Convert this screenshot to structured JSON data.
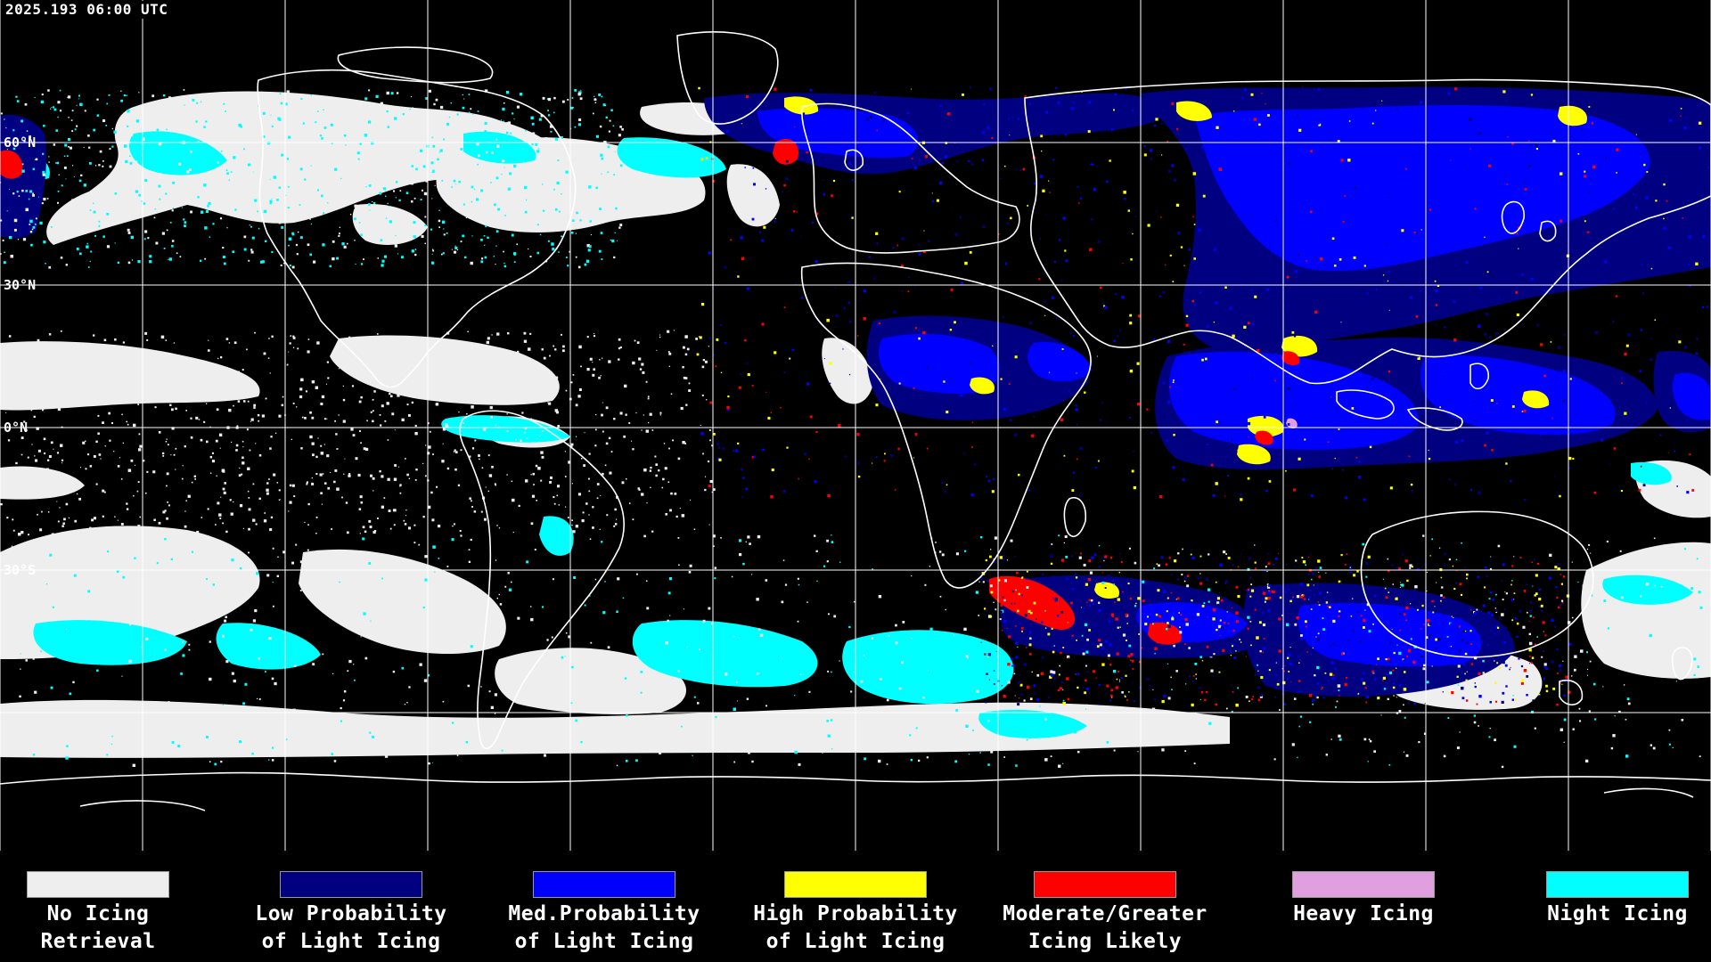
{
  "timestamp": "2025.193 06:00 UTC",
  "lat_labels": [
    {
      "text": "60°N",
      "row": 1
    },
    {
      "text": "30°N",
      "row": 2
    },
    {
      "text": "0°N",
      "row": 3
    },
    {
      "text": "30°S",
      "row": 4
    }
  ],
  "colors": {
    "background": "#000000",
    "no_icing": "#EEEEEE",
    "low_probability": "#000080",
    "med_probability": "#0000FF",
    "high_probability": "#FFFF00",
    "moderate_greater": "#FF0000",
    "heavy_icing": "#E0A0E0",
    "night_icing": "#00FFFF",
    "coastline": "#FFFFFF",
    "gridline": "#FFFFFF"
  },
  "legend": [
    {
      "line1": "No Icing",
      "line2": "Retrieval",
      "color": "#EEEEEE"
    },
    {
      "line1": "Low Probability",
      "line2": "of Light Icing",
      "color": "#000080"
    },
    {
      "line1": "Med.Probability",
      "line2": "of Light Icing",
      "color": "#0000FF"
    },
    {
      "line1": "High Probability",
      "line2": "of Light Icing",
      "color": "#FFFF00"
    },
    {
      "line1": "Moderate/Greater",
      "line2": "Icing Likely",
      "color": "#FF0000"
    },
    {
      "line1": "Heavy Icing",
      "line2": "",
      "color": "#E0A0E0"
    },
    {
      "line1": "Night Icing",
      "line2": "",
      "color": "#00FFFF"
    }
  ]
}
